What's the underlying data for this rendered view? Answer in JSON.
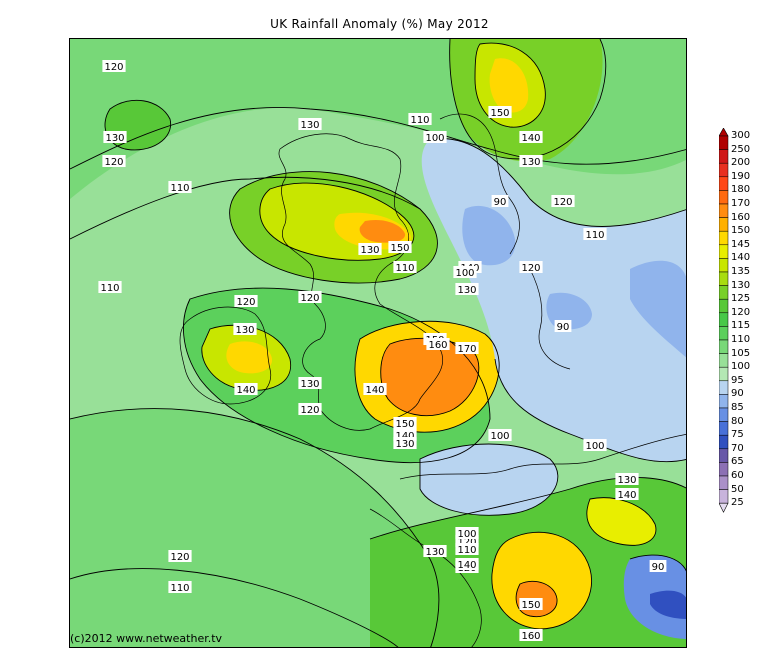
{
  "title": "UK Rainfall Anomaly (%) May 2012",
  "copyright": "(c)2012 www.netweather.tv",
  "contour_labels": [
    "120",
    "130",
    "120",
    "110",
    "130",
    "110",
    "100",
    "150",
    "140",
    "130",
    "120",
    "90",
    "110",
    "150",
    "140",
    "130",
    "110",
    "100",
    "120",
    "130",
    "110",
    "120",
    "130",
    "120",
    "150",
    "160",
    "170",
    "140",
    "130",
    "140",
    "120",
    "150",
    "140",
    "130",
    "100",
    "90",
    "100",
    "130",
    "140",
    "120",
    "110",
    "120",
    "100",
    "110",
    "120",
    "130",
    "140",
    "150",
    "160",
    "90"
  ],
  "colorbar": {
    "labels": [
      "300",
      "250",
      "200",
      "190",
      "180",
      "170",
      "160",
      "150",
      "145",
      "140",
      "135",
      "130",
      "125",
      "120",
      "115",
      "110",
      "105",
      "100",
      "95",
      "90",
      "85",
      "80",
      "75",
      "70",
      "65",
      "60",
      "50",
      "25"
    ],
    "colors": [
      "#b00000",
      "#d01818",
      "#e83020",
      "#ff4818",
      "#ff6a10",
      "#ff8c10",
      "#ffb000",
      "#ffd800",
      "#e8ee00",
      "#c8e600",
      "#a8dc10",
      "#78d028",
      "#58c838",
      "#48c848",
      "#5cd05c",
      "#78d878",
      "#98e098",
      "#b4e8b4",
      "#b8d4f0",
      "#90b4ec",
      "#6890e4",
      "#4870d8",
      "#3050c0",
      "#6858a8",
      "#8c70b4",
      "#aa90c8",
      "#c8b4dc",
      "#e4dcf0"
    ]
  }
}
